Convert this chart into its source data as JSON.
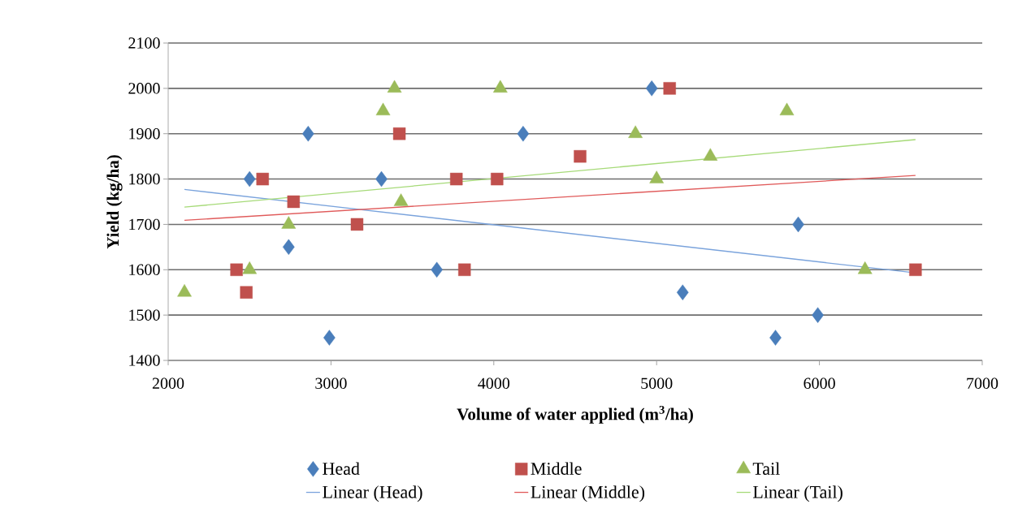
{
  "chart_data": {
    "type": "scatter",
    "xlabel": "Volume of water applied (m$^{3}$/ha)",
    "ylabel": "Yield (kg/ha)",
    "xlim": [
      2000,
      7000
    ],
    "xticks": [
      2000,
      3000,
      4000,
      5000,
      6000,
      7000
    ],
    "ylim": [
      1400,
      2100
    ],
    "yticks": [
      1400,
      1500,
      1600,
      1700,
      1800,
      1900,
      2000,
      2100
    ],
    "grid": "y",
    "legend": "bottom",
    "series": [
      {
        "name": "Head",
        "marker": "diamond",
        "color": "#4a7ebb",
        "x": [
          2500,
          2740,
          2860,
          2990,
          3310,
          3650,
          4180,
          4970,
          5160,
          5730,
          5870,
          5990
        ],
        "values": [
          1800,
          1650,
          1900,
          1450,
          1800,
          1600,
          1900,
          2000,
          1550,
          1450,
          1700,
          1500
        ]
      },
      {
        "name": "Middle",
        "marker": "square",
        "color": "#c0504d",
        "x": [
          2420,
          2480,
          2580,
          2770,
          3160,
          3420,
          3770,
          3820,
          4020,
          4530,
          5080,
          6590
        ],
        "values": [
          1600,
          1550,
          1800,
          1750,
          1700,
          1900,
          1800,
          1600,
          1800,
          1850,
          2000,
          1600
        ]
      },
      {
        "name": "Tail",
        "marker": "triangle",
        "color": "#9bbb59",
        "x": [
          2100,
          2500,
          2740,
          3320,
          3390,
          3430,
          4040,
          4870,
          5000,
          5330,
          5800,
          6280
        ],
        "values": [
          1550,
          1600,
          1700,
          1950,
          2000,
          1750,
          2000,
          1900,
          1800,
          1850,
          1950,
          1600
        ]
      },
      {
        "name": "Linear (Head)",
        "type": "line",
        "marker": "none",
        "color": "#7aa3dc",
        "x": [
          2100,
          6590
        ],
        "values": [
          1777,
          1593
        ]
      },
      {
        "name": "Linear (Middle)",
        "type": "line",
        "marker": "none",
        "color": "#e05a5a",
        "x": [
          2100,
          6590
        ],
        "values": [
          1709,
          1808
        ]
      },
      {
        "name": "Linear (Tail)",
        "type": "line",
        "marker": "none",
        "color": "#a6da78",
        "x": [
          2100,
          6590
        ],
        "values": [
          1738,
          1887
        ]
      }
    ]
  }
}
